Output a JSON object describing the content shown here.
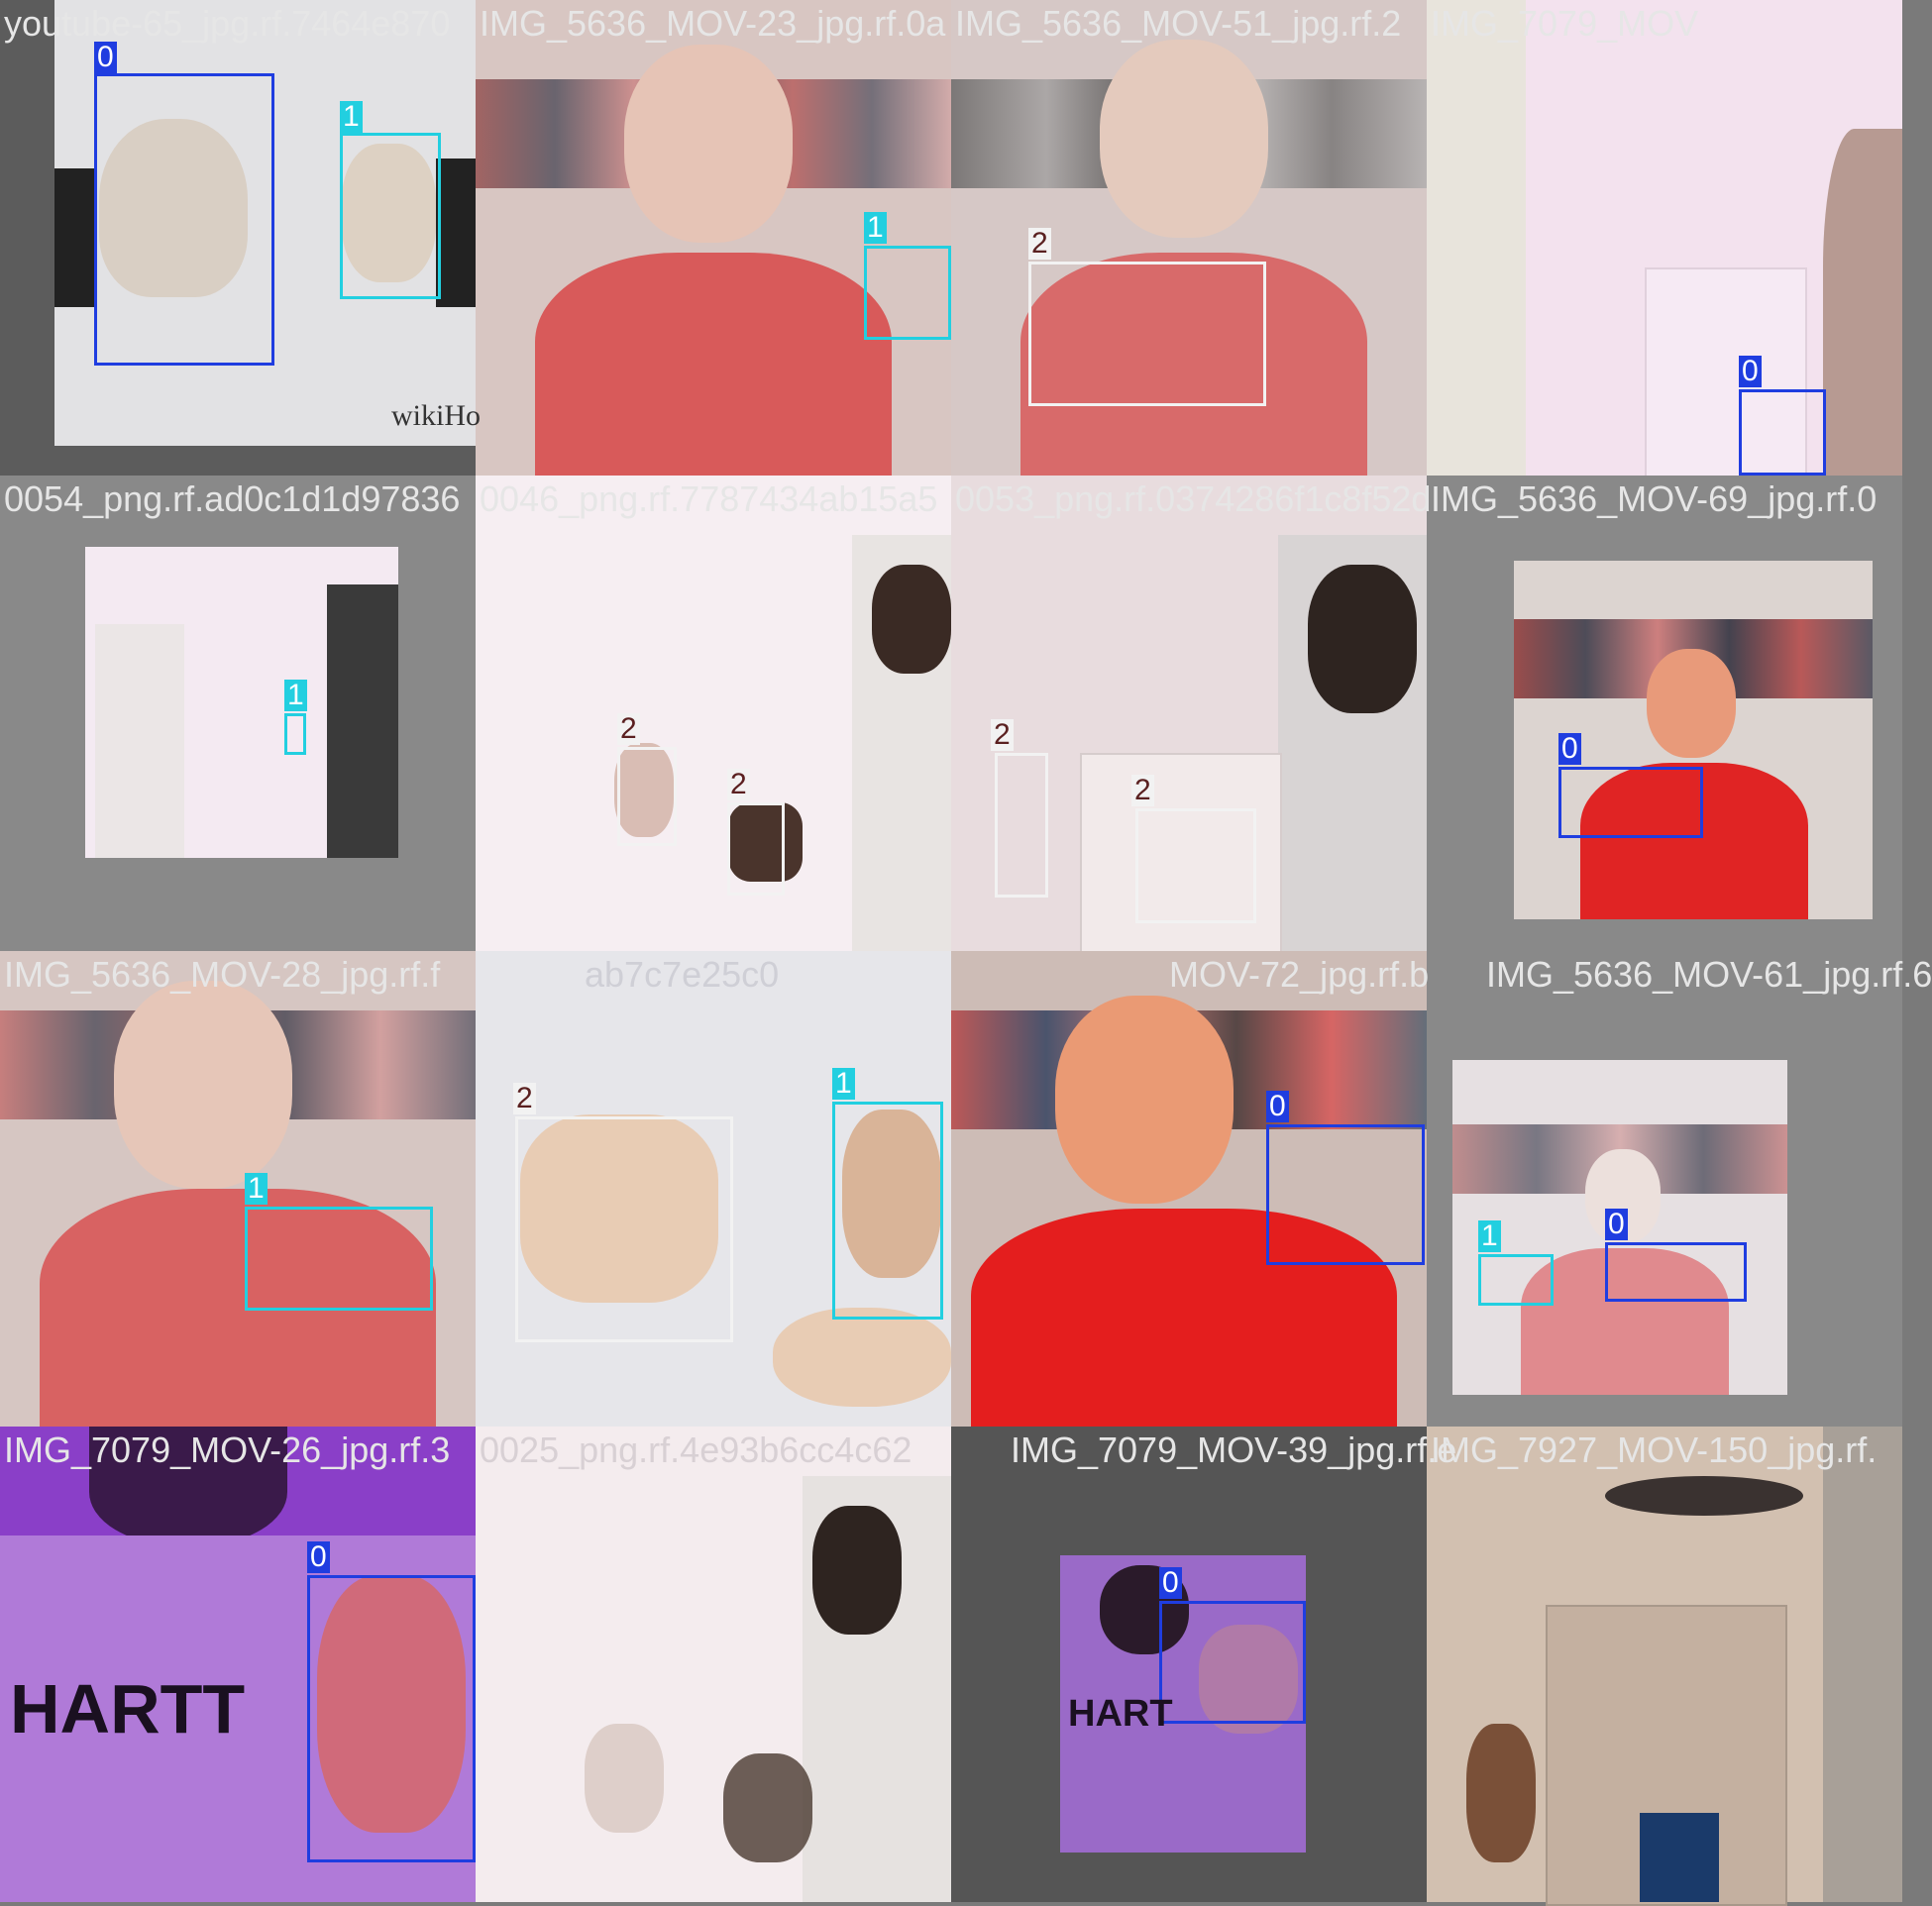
{
  "class_colors": {
    "0": "#1f3de0",
    "1": "#22cfe0",
    "2": "#f2f2f2"
  },
  "tiles": [
    {
      "name": "youtube-65_jpg.rf.7464e870",
      "watermark": "wikiHo",
      "boxes": [
        {
          "cls": "0"
        },
        {
          "cls": "1"
        }
      ]
    },
    {
      "name": "IMG_5636_MOV-23_jpg.rf.0a",
      "boxes": [
        {
          "cls": "1"
        }
      ]
    },
    {
      "name": "IMG_5636_MOV-51_jpg.rf.2",
      "boxes": [
        {
          "cls": "2"
        }
      ]
    },
    {
      "name": "IMG_7079_MOV",
      "boxes": [
        {
          "cls": "0"
        }
      ]
    },
    {
      "name": "0054_png.rf.ad0c1d1d97836",
      "boxes": [
        {
          "cls": "1"
        }
      ]
    },
    {
      "name": "0046_png.rf.7787434ab15a5",
      "boxes": [
        {
          "cls": "2"
        },
        {
          "cls": "2"
        }
      ]
    },
    {
      "name": "0053_png.rf.0374286f1c8f52d",
      "boxes": [
        {
          "cls": "2"
        },
        {
          "cls": "2"
        }
      ]
    },
    {
      "name": "IMG_5636_MOV-69_jpg.rf.0",
      "boxes": [
        {
          "cls": "0"
        }
      ]
    },
    {
      "name": "IMG_5636_MOV-28_jpg.rf.f",
      "boxes": [
        {
          "cls": "1"
        }
      ]
    },
    {
      "name": "ab7c7e25c0",
      "boxes": [
        {
          "cls": "2"
        },
        {
          "cls": "1"
        }
      ]
    },
    {
      "name": "MOV-72_jpg.rf.b",
      "boxes": [
        {
          "cls": "0"
        }
      ]
    },
    {
      "name": "IMG_5636_MOV-61_jpg.rf.6",
      "boxes": [
        {
          "cls": "1"
        },
        {
          "cls": "0"
        }
      ]
    },
    {
      "name": "IMG_7079_MOV-26_jpg.rf.3",
      "logo": "HARTT",
      "boxes": [
        {
          "cls": "0"
        }
      ]
    },
    {
      "name": "0025_png.rf.4e93b6cc4c62",
      "boxes": []
    },
    {
      "name": "IMG_7079_MOV-39_jpg.rf.e",
      "logo": "HART",
      "boxes": [
        {
          "cls": "0"
        }
      ]
    },
    {
      "name": "IMG_7927_MOV-150_jpg.rf.",
      "boxes": []
    }
  ]
}
